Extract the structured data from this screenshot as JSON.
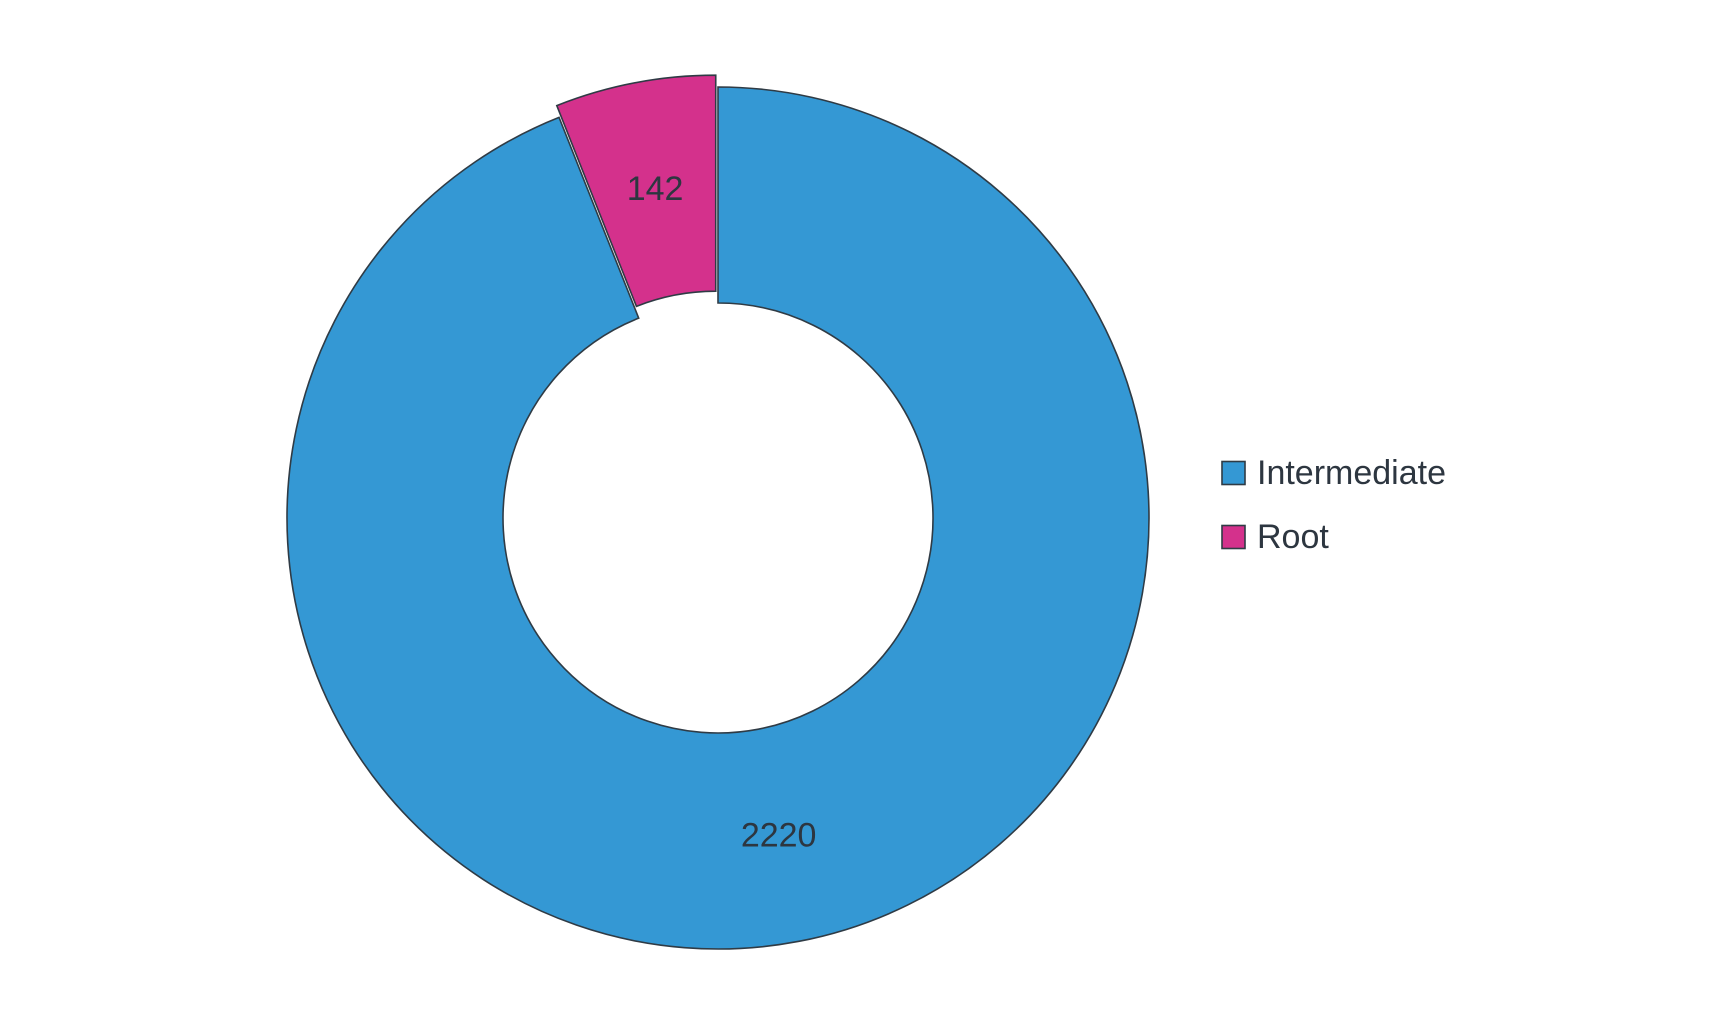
{
  "chart_data": {
    "type": "pie",
    "variant": "donut",
    "title": "",
    "series": [
      {
        "name": "Intermediate",
        "value": 2220,
        "color": "#3498D4",
        "exploded": false
      },
      {
        "name": "Root",
        "value": 142,
        "color": "#D4318C",
        "exploded": true
      }
    ],
    "data_labels": [
      "2220",
      "142"
    ],
    "legend": {
      "position": "right",
      "items": [
        "Intermediate",
        "Root"
      ]
    },
    "start_angle_deg": 0,
    "direction": "clockwise",
    "edge_color": "#2F3B45",
    "label_color": "#2D3640"
  }
}
